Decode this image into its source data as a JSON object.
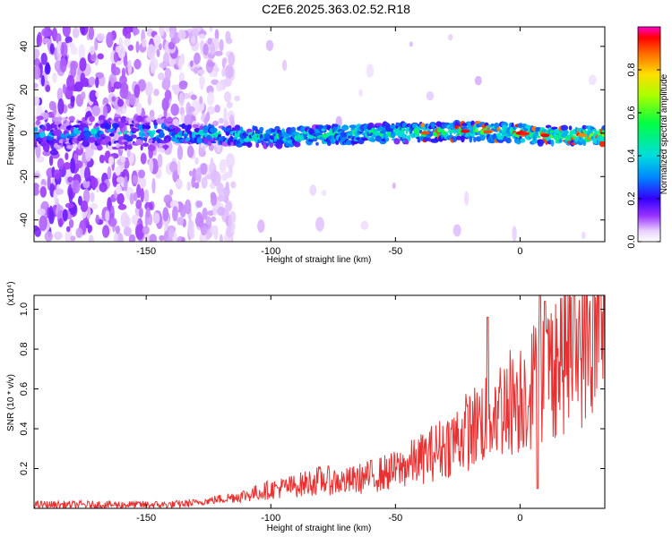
{
  "title": "C2E6.2025.363.02.52.R18",
  "chart_data": [
    {
      "type": "heatmap",
      "name": "spectrogram",
      "xlabel": "Height of straight line (km)",
      "ylabel": "Frequency (Hz)",
      "xlim": [
        -195,
        34
      ],
      "ylim": [
        -50,
        49
      ],
      "xticks": [
        -150,
        -100,
        -50,
        0
      ],
      "yticks": [
        -40,
        -20,
        0,
        20,
        40
      ],
      "colorbar": {
        "label": "Normalized spectral amplitude",
        "range": [
          0.0,
          1.0
        ],
        "ticks": [
          0.0,
          0.2,
          0.4,
          0.6,
          0.8
        ]
      },
      "ridge": {
        "description_points_x": [
          -195,
          -150,
          -120,
          -100,
          -80,
          -60,
          -40,
          -20,
          0,
          10,
          34
        ],
        "center_freq_hz": [
          0,
          0,
          -1,
          -2,
          -1,
          0,
          0,
          1,
          0,
          -1,
          -1
        ]
      }
    },
    {
      "type": "line",
      "name": "snr",
      "xlabel": "Height of straight line (km)",
      "ylabel": "SNR (10 * v/v)",
      "multiplier": "(x10⁴)",
      "xlim": [
        -195,
        34
      ],
      "ylim": [
        0,
        1.07
      ],
      "xticks": [
        -150,
        -100,
        -50,
        0
      ],
      "yticks": [
        0.2,
        0.4,
        0.6,
        0.8,
        1.0
      ],
      "color": "#e83030",
      "trend_x": [
        -195,
        -160,
        -140,
        -130,
        -120,
        -110,
        -100,
        -90,
        -80,
        -70,
        -60,
        -50,
        -40,
        -30,
        -20,
        -10,
        0,
        5,
        10,
        15,
        20,
        25,
        34
      ],
      "trend_y": [
        0.02,
        0.02,
        0.02,
        0.03,
        0.05,
        0.07,
        0.1,
        0.12,
        0.15,
        0.14,
        0.17,
        0.2,
        0.26,
        0.33,
        0.42,
        0.52,
        0.6,
        0.65,
        0.72,
        0.78,
        0.84,
        0.88,
        0.92
      ],
      "spikes": [
        {
          "x": -13,
          "y": 0.96
        },
        {
          "x": 8,
          "y": 1.07
        },
        {
          "x": 10,
          "y": 1.04
        },
        {
          "x": 7,
          "y": 0.1
        }
      ]
    }
  ]
}
